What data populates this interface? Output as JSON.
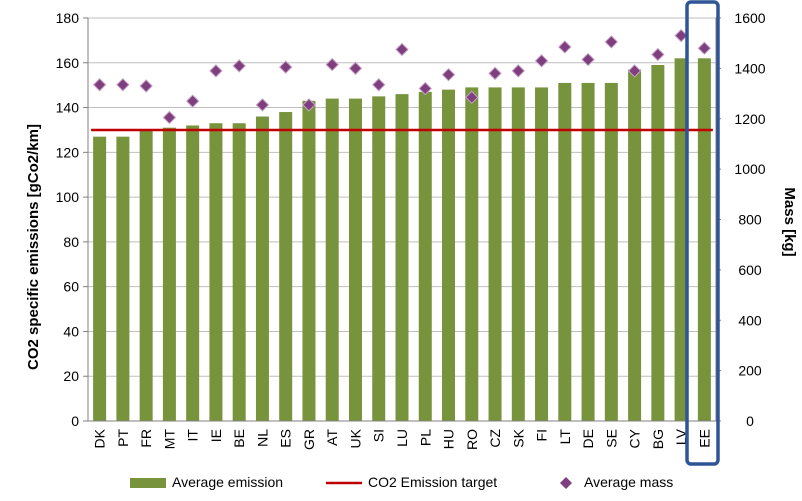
{
  "chart_data": {
    "type": "bar",
    "categories": [
      "DK",
      "PT",
      "FR",
      "MT",
      "IT",
      "IE",
      "BE",
      "NL",
      "ES",
      "GR",
      "AT",
      "UK",
      "SI",
      "LU",
      "PL",
      "HU",
      "RO",
      "CZ",
      "SK",
      "FI",
      "LT",
      "DE",
      "SE",
      "CY",
      "BG",
      "LV",
      "EE"
    ],
    "series": [
      {
        "name": "Average emission",
        "type": "bar",
        "axis": "left",
        "color": "#77933C",
        "values": [
          127,
          127,
          130,
          131,
          132,
          133,
          133,
          136,
          138,
          143,
          144,
          144,
          145,
          146,
          147,
          148,
          149,
          149,
          149,
          149,
          151,
          151,
          151,
          157,
          159,
          162,
          162
        ]
      },
      {
        "name": "CO2 Emission target",
        "type": "line",
        "axis": "left",
        "color": "#C00000",
        "values": [
          130,
          130,
          130,
          130,
          130,
          130,
          130,
          130,
          130,
          130,
          130,
          130,
          130,
          130,
          130,
          130,
          130,
          130,
          130,
          130,
          130,
          130,
          130,
          130,
          130,
          130,
          130
        ]
      },
      {
        "name": "Average mass",
        "type": "scatter",
        "axis": "right",
        "color": "#7F3F7F",
        "values": [
          1335,
          1335,
          1330,
          1205,
          1270,
          1390,
          1410,
          1255,
          1405,
          1255,
          1415,
          1400,
          1335,
          1475,
          1320,
          1375,
          1285,
          1380,
          1390,
          1430,
          1485,
          1435,
          1505,
          1390,
          1455,
          1530,
          1480
        ]
      }
    ],
    "ylabel": "CO2 specific emissions [gCo2/km]",
    "ylabel_right": "Mass [kg]",
    "ylim": [
      0,
      180
    ],
    "y_ticks": [
      "0",
      "20",
      "40",
      "60",
      "80",
      "100",
      "120",
      "140",
      "160",
      "180"
    ],
    "ylim_right": [
      0,
      1600
    ],
    "y_ticks_right": [
      "0",
      "200",
      "400",
      "600",
      "800",
      "1000",
      "1200",
      "1400",
      "1600"
    ],
    "grid": true,
    "legend_position": "bottom",
    "highlight_category": "EE",
    "highlight_color": "#2F5597"
  }
}
